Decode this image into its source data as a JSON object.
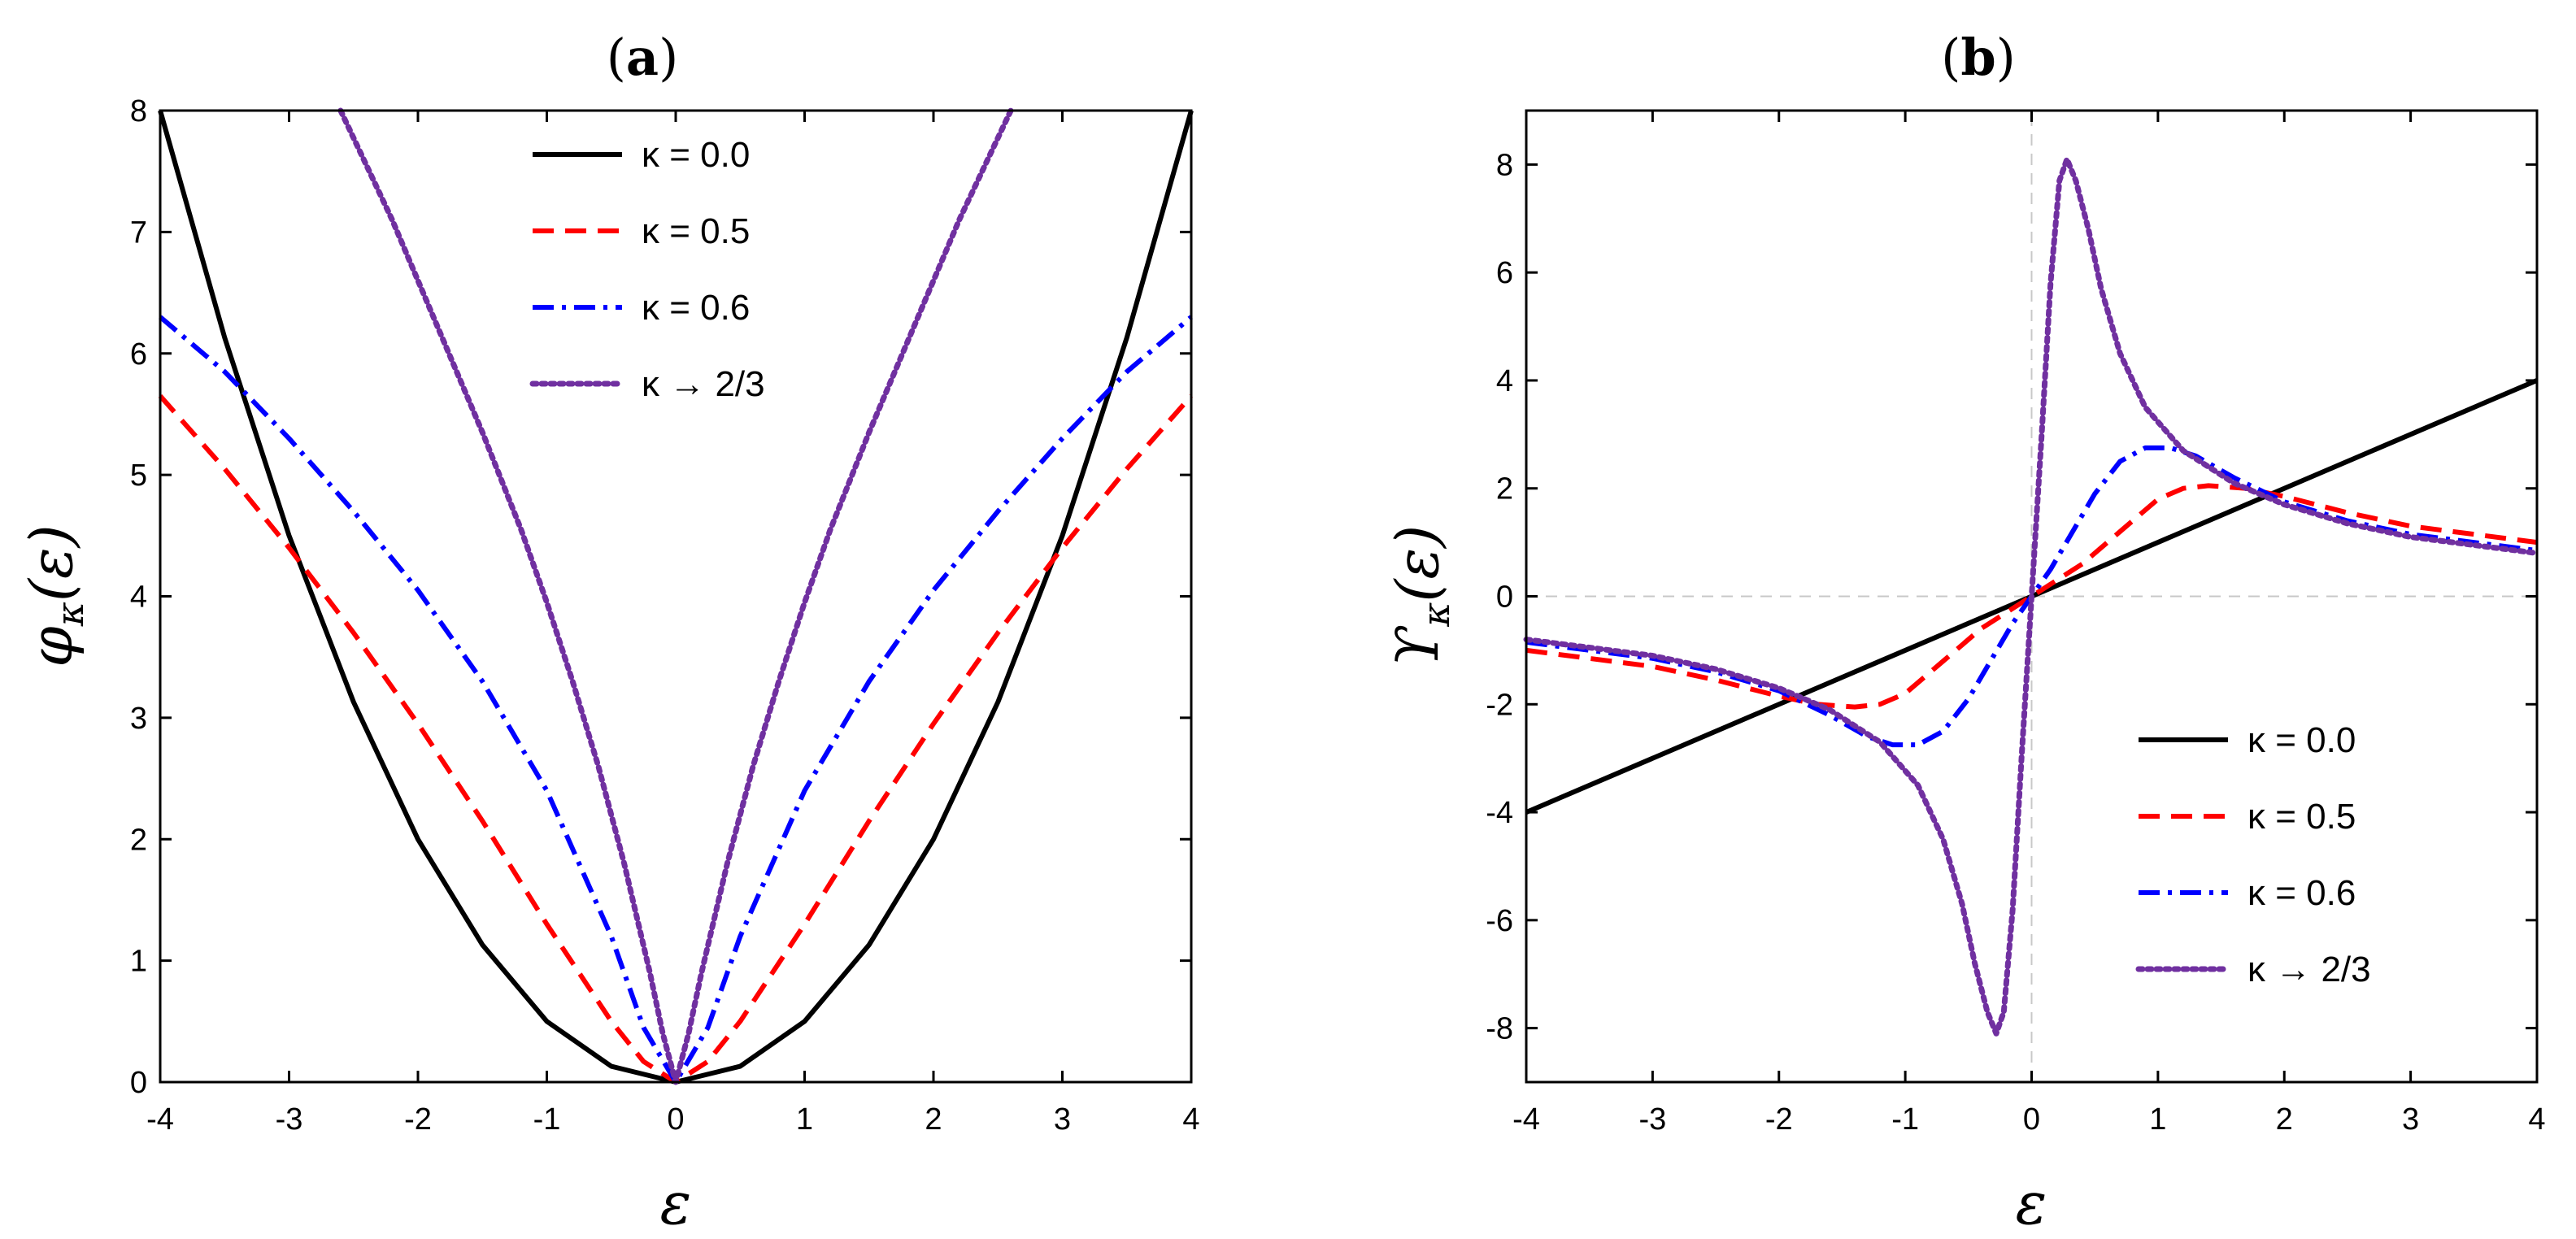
{
  "chart_data": [
    {
      "panel": "(a)",
      "title": "(a)",
      "title_letter": "a",
      "type": "line",
      "xlabel": "ε",
      "ylabel_main": "φ",
      "ylabel_sub": "κ",
      "ylabel_arg": "(ε)",
      "xlim": [
        -4,
        4
      ],
      "ylim": [
        0,
        8
      ],
      "xticks": [
        -4,
        -3,
        -2,
        -1,
        0,
        1,
        2,
        3,
        4
      ],
      "yticks": [
        0,
        1,
        2,
        3,
        4,
        5,
        6,
        7,
        8
      ],
      "legend_location": "top-center",
      "series": [
        {
          "name": "κ = 0.0",
          "kappa": 0.0,
          "color": "#000000",
          "style": "solid",
          "x": [
            -4,
            -3.5,
            -3,
            -2.5,
            -2,
            -1.5,
            -1,
            -0.5,
            0,
            0.5,
            1,
            1.5,
            2,
            2.5,
            3,
            3.5,
            4
          ],
          "y": [
            8.0,
            6.13,
            4.5,
            3.13,
            2.0,
            1.13,
            0.5,
            0.13,
            0.0,
            0.13,
            0.5,
            1.13,
            2.0,
            3.13,
            4.5,
            6.13,
            8.0
          ]
        },
        {
          "name": "κ = 0.5",
          "kappa": 0.5,
          "color": "#ff0000",
          "style": "dashed",
          "x": [
            -4,
            -3.5,
            -3,
            -2.5,
            -2,
            -1.5,
            -1,
            -0.5,
            -0.25,
            0,
            0.25,
            0.5,
            1,
            1.5,
            2,
            2.5,
            3,
            3.5,
            4
          ],
          "y": [
            5.65,
            5.05,
            4.4,
            3.7,
            2.95,
            2.15,
            1.3,
            0.5,
            0.17,
            0.0,
            0.17,
            0.5,
            1.3,
            2.15,
            2.95,
            3.7,
            4.4,
            5.05,
            5.65
          ]
        },
        {
          "name": "κ = 0.6",
          "kappa": 0.6,
          "color": "#0000ff",
          "style": "dashdot",
          "x": [
            -4,
            -3.5,
            -3,
            -2.5,
            -2,
            -1.5,
            -1,
            -0.5,
            -0.25,
            0,
            0.25,
            0.5,
            1,
            1.5,
            2,
            2.5,
            3,
            3.5,
            4
          ],
          "y": [
            6.3,
            5.85,
            5.3,
            4.7,
            4.05,
            3.3,
            2.4,
            1.2,
            0.45,
            0.0,
            0.45,
            1.2,
            2.4,
            3.3,
            4.05,
            4.7,
            5.3,
            5.85,
            6.3
          ]
        },
        {
          "name": "κ → 2/3",
          "kappa": 0.6667,
          "color": "#7030a0",
          "style": "dotted",
          "x": [
            -2.6,
            -2.2,
            -1.8,
            -1.5,
            -1.2,
            -1.0,
            -0.8,
            -0.6,
            -0.4,
            -0.2,
            -0.1,
            0,
            0.1,
            0.2,
            0.4,
            0.6,
            0.8,
            1.0,
            1.2,
            1.5,
            1.8,
            2.2,
            2.6
          ],
          "y": [
            8.0,
            7.1,
            6.1,
            5.35,
            4.55,
            3.95,
            3.3,
            2.6,
            1.8,
            0.9,
            0.4,
            0.0,
            0.4,
            0.9,
            1.8,
            2.6,
            3.3,
            3.95,
            4.55,
            5.35,
            6.1,
            7.1,
            8.0
          ]
        }
      ]
    },
    {
      "panel": "(b)",
      "title": "(b)",
      "title_letter": "b",
      "type": "line",
      "xlabel": "ε",
      "ylabel_main": "ϒ",
      "ylabel_sub": "κ",
      "ylabel_arg": "(ε)",
      "xlim": [
        -4,
        4
      ],
      "ylim": [
        -9,
        9
      ],
      "xticks": [
        -4,
        -3,
        -2,
        -1,
        0,
        1,
        2,
        3,
        4
      ],
      "yticks": [
        -8,
        -6,
        -4,
        -2,
        0,
        2,
        4,
        6,
        8
      ],
      "legend_location": "bottom-right",
      "series": [
        {
          "name": "κ = 0.0",
          "kappa": 0.0,
          "color": "#000000",
          "style": "solid",
          "x": [
            -4,
            4
          ],
          "y": [
            -4,
            4
          ]
        },
        {
          "name": "κ = 0.5",
          "kappa": 0.5,
          "color": "#ff0000",
          "style": "dashed",
          "x": [
            -4,
            -3,
            -2.5,
            -2,
            -1.7,
            -1.4,
            -1.2,
            -1.0,
            -0.7,
            -0.4,
            -0.2,
            0,
            0.2,
            0.4,
            0.7,
            1.0,
            1.2,
            1.4,
            1.7,
            2,
            2.5,
            3,
            4
          ],
          "y": [
            -1.0,
            -1.3,
            -1.55,
            -1.85,
            -2.0,
            -2.05,
            -2.0,
            -1.8,
            -1.2,
            -0.6,
            -0.3,
            0,
            0.3,
            0.6,
            1.2,
            1.8,
            2.0,
            2.05,
            2.0,
            1.85,
            1.55,
            1.3,
            1.0
          ]
        },
        {
          "name": "κ = 0.6",
          "kappa": 0.6,
          "color": "#0000ff",
          "style": "dashdot",
          "x": [
            -4,
            -3,
            -2.5,
            -2,
            -1.6,
            -1.3,
            -1.1,
            -0.9,
            -0.7,
            -0.5,
            -0.3,
            -0.15,
            0,
            0.15,
            0.3,
            0.5,
            0.7,
            0.9,
            1.1,
            1.3,
            1.6,
            2,
            2.5,
            3,
            4
          ],
          "y": [
            -0.85,
            -1.15,
            -1.4,
            -1.75,
            -2.2,
            -2.6,
            -2.75,
            -2.75,
            -2.5,
            -1.9,
            -1.1,
            -0.5,
            0,
            0.5,
            1.1,
            1.9,
            2.5,
            2.75,
            2.75,
            2.6,
            2.2,
            1.75,
            1.4,
            1.15,
            0.85
          ]
        },
        {
          "name": "κ → 2/3",
          "kappa": 0.6667,
          "color": "#7030a0",
          "style": "dotted",
          "x": [
            -4,
            -3,
            -2.5,
            -2,
            -1.6,
            -1.2,
            -0.9,
            -0.7,
            -0.55,
            -0.45,
            -0.35,
            -0.28,
            -0.22,
            -0.15,
            -0.08,
            0,
            0.08,
            0.15,
            0.22,
            0.28,
            0.35,
            0.45,
            0.55,
            0.7,
            0.9,
            1.2,
            1.6,
            2,
            2.5,
            3,
            4
          ],
          "y": [
            -0.8,
            -1.1,
            -1.35,
            -1.7,
            -2.1,
            -2.7,
            -3.5,
            -4.5,
            -5.7,
            -6.8,
            -7.7,
            -8.1,
            -7.7,
            -5.8,
            -3.0,
            0,
            3.0,
            5.8,
            7.7,
            8.1,
            7.7,
            6.8,
            5.7,
            4.5,
            3.5,
            2.7,
            2.1,
            1.7,
            1.35,
            1.1,
            0.8
          ]
        }
      ]
    }
  ]
}
